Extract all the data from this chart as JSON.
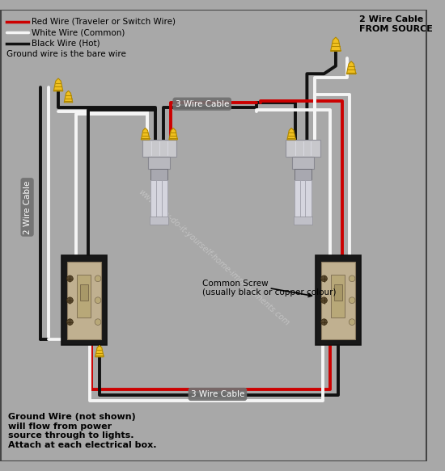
{
  "bg_color": "#a8a8a8",
  "legend": {
    "red_label": "Red Wire (Traveler or Switch Wire)",
    "white_label": "White Wire (Common)",
    "black_label": "Black Wire (Hot)",
    "ground_label": "Ground wire is the bare wire"
  },
  "bottom_note": "Ground Wire (not shown)\nwill flow from power\nsource through to lights.\nAttach at each electrical box.",
  "cable_label_top": "3 Wire Cable",
  "cable_label_left": "2 Wire Cable",
  "cable_label_bottom": "3 Wire Cable",
  "source_label": "2 Wire Cable\nFROM SOURCE",
  "common_screw_label": "Common Screw\n(usually black or copper colour)",
  "watermark": "www.easy-do-it-yourself-home-improvements.com",
  "RED": "#cc0000",
  "WHITE": "#f5f5f5",
  "BLACK": "#111111",
  "YELLOW": "#f0c020",
  "YELLOW_DARK": "#b08800",
  "SWITCH_OUTER": "#1a1a1a",
  "SWITCH_BODY": "#b0a080",
  "SOCKET_COLOR": "#c8c8cc",
  "BULB_COLOR": "#d0d0d8"
}
